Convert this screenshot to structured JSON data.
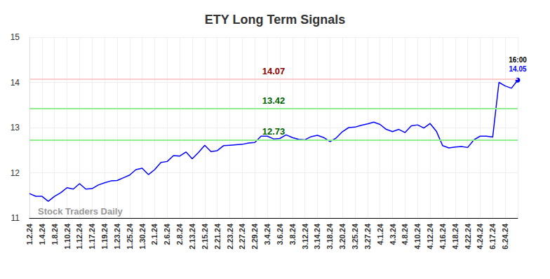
{
  "chart_data": {
    "type": "line",
    "title": "ETY Long Term Signals",
    "watermark": "Stock Traders Daily",
    "categories": [
      "1.2.24",
      null,
      "1.4.24",
      null,
      "1.8.24",
      null,
      "1.10.24",
      null,
      "1.12.24",
      null,
      "1.17.24",
      null,
      "1.19.24",
      null,
      "1.23.24",
      null,
      "1.25.24",
      null,
      "1.30.24",
      null,
      "2.1.24",
      null,
      "2.6.24",
      null,
      "2.8.24",
      null,
      "2.13.24",
      null,
      "2.15.24",
      null,
      "2.21.24",
      null,
      "2.23.24",
      null,
      "2.27.24",
      null,
      "2.29.24",
      null,
      "3.4.24",
      null,
      "3.6.24",
      null,
      "3.8.24",
      null,
      "3.12.24",
      null,
      "3.14.24",
      null,
      "3.18.24",
      null,
      "3.20.24",
      null,
      "3.25.24",
      null,
      "3.27.24",
      null,
      "4.1.24",
      null,
      "4.3.24",
      null,
      "4.8.24",
      null,
      "4.10.24",
      null,
      "4.12.24",
      null,
      "4.16.24",
      null,
      "4.18.24",
      null,
      "4.22.24",
      null,
      "4.24.24",
      null,
      "6.17.24",
      null,
      "6.24.24",
      null,
      null
    ],
    "values": [
      11.54,
      11.48,
      11.48,
      11.37,
      11.48,
      11.56,
      11.67,
      11.64,
      11.76,
      11.64,
      11.65,
      11.73,
      11.78,
      11.82,
      11.83,
      11.89,
      11.95,
      12.07,
      12.1,
      11.96,
      12.07,
      12.23,
      12.25,
      12.38,
      12.37,
      12.46,
      12.31,
      12.45,
      12.61,
      12.47,
      12.49,
      12.6,
      12.61,
      12.62,
      12.63,
      12.66,
      12.67,
      12.81,
      12.81,
      12.75,
      12.76,
      12.84,
      12.78,
      12.74,
      12.73,
      12.8,
      12.83,
      12.78,
      12.69,
      12.77,
      12.91,
      13.0,
      13.01,
      13.05,
      13.08,
      13.12,
      13.07,
      12.96,
      12.91,
      12.96,
      12.89,
      13.04,
      13.06,
      12.99,
      13.09,
      12.92,
      12.6,
      12.55,
      12.57,
      12.58,
      12.56,
      12.73,
      12.81,
      12.81,
      12.79,
      14.0,
      13.92,
      13.87,
      14.05
    ],
    "color": "#0000ff",
    "ylim": [
      11,
      15
    ],
    "yticks": [
      11,
      12,
      13,
      14,
      15
    ],
    "grid": true,
    "signal_lines": [
      {
        "value": 14.07,
        "label": "14.07",
        "color": "#ffcccc",
        "label_color": "#8b0000"
      },
      {
        "value": 13.42,
        "label": "13.42",
        "color": "#90ee90",
        "label_color": "#006400"
      },
      {
        "value": 12.73,
        "label": "12.73",
        "color": "#90ee90",
        "label_color": "#006400"
      }
    ],
    "last_point": {
      "time_label": "16:00",
      "value_label": "14.05"
    }
  }
}
